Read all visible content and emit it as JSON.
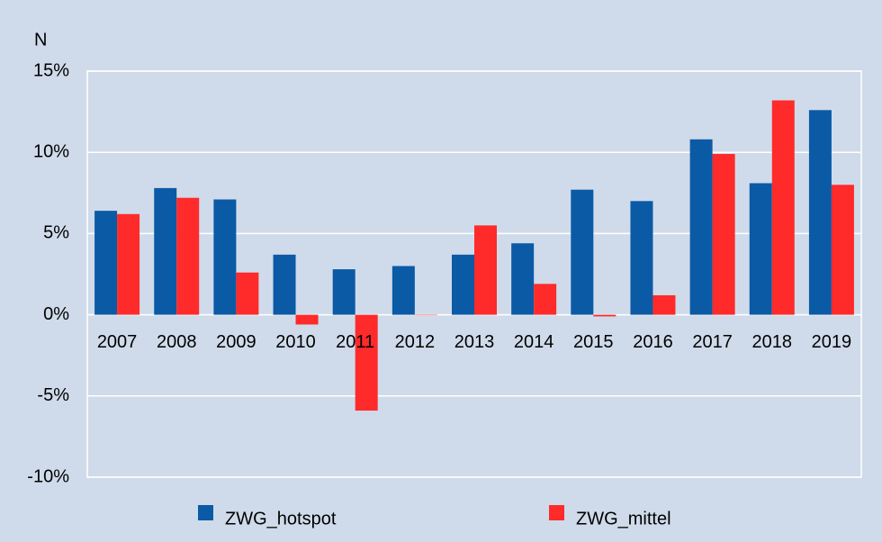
{
  "chart_data": {
    "type": "bar",
    "title": "N",
    "categories": [
      "2007",
      "2008",
      "2009",
      "2010",
      "2011",
      "2012",
      "2013",
      "2014",
      "2015",
      "2016",
      "2017",
      "2018",
      "2019"
    ],
    "series": [
      {
        "name": "ZWG_hotspot",
        "color": "#0b5aa6",
        "values": [
          6.4,
          7.8,
          7.1,
          3.7,
          2.8,
          3.0,
          3.7,
          4.4,
          7.7,
          7.0,
          10.8,
          8.1,
          12.6
        ]
      },
      {
        "name": "ZWG_mittel",
        "color": "#ff2a2a",
        "values": [
          6.2,
          7.2,
          2.6,
          -0.6,
          -5.9,
          0,
          5.5,
          1.9,
          -0.1,
          1.2,
          9.9,
          13.2,
          8.0
        ]
      }
    ],
    "ylim": [
      -10,
      15
    ],
    "yticks": [
      {
        "value": -10,
        "label": "-10%"
      },
      {
        "value": -5,
        "label": "-5%"
      },
      {
        "value": 0,
        "label": "0%"
      },
      {
        "value": 5,
        "label": "5%"
      },
      {
        "value": 10,
        "label": "10%"
      },
      {
        "value": 15,
        "label": "15%"
      }
    ],
    "grid": true
  }
}
